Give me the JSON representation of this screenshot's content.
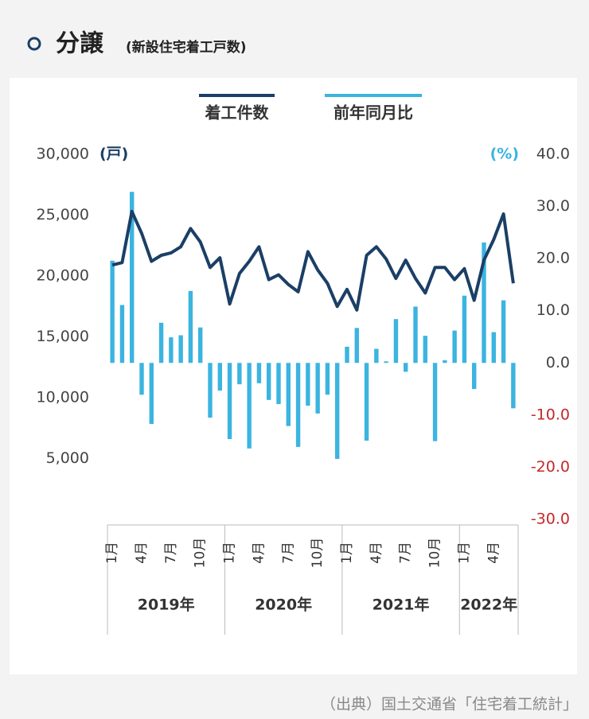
{
  "title": "分譲",
  "subtitle": "(新設住宅着工戸数)",
  "source": "（出典）国土交通省「住宅着工統計」",
  "chart_data": {
    "type": "bar-line",
    "categories": [
      "1月",
      null,
      null,
      "4月",
      null,
      null,
      "7月",
      null,
      null,
      "10月",
      null,
      null,
      "1月",
      null,
      null,
      "4月",
      null,
      null,
      "7月",
      null,
      null,
      "10月",
      null,
      null,
      "1月",
      null,
      null,
      "4月",
      null,
      null,
      "7月",
      null,
      null,
      "10月",
      null,
      null,
      "1月",
      null,
      null,
      "4月",
      null,
      null
    ],
    "groups": [
      "2019年",
      "2020年",
      "2021年",
      "2022年"
    ],
    "y_unit": "(戸)",
    "y2_unit": "(%)",
    "series": [
      {
        "name": "着工件数",
        "type": "line",
        "color": "#1b3f66",
        "axis": "y",
        "values": [
          20900,
          21100,
          25300,
          23500,
          21200,
          21700,
          21900,
          22400,
          23900,
          22800,
          20700,
          21500,
          17700,
          20200,
          21200,
          22400,
          19700,
          20100,
          19300,
          18700,
          22000,
          20500,
          19400,
          17500,
          18900,
          17200,
          21700,
          22400,
          21400,
          19800,
          21300,
          19800,
          18600,
          20700,
          20700,
          19700,
          20600,
          18000,
          21300,
          23000,
          25100,
          19400
        ]
      },
      {
        "name": "前年同月比",
        "type": "bar",
        "color": "#3bb4e0",
        "axis": "y2",
        "values": [
          19.6,
          11.1,
          32.8,
          -6.1,
          -11.7,
          7.7,
          4.9,
          5.3,
          13.8,
          6.8,
          -10.5,
          -5.3,
          -14.6,
          -4.1,
          -16.4,
          -3.9,
          -7.1,
          -7.9,
          -12.1,
          -16.1,
          -8.2,
          -9.7,
          -6.1,
          -18.4,
          3.1,
          6.7,
          -14.9,
          2.7,
          0.3,
          8.4,
          -1.7,
          10.8,
          5.2,
          -15.0,
          0.5,
          6.2,
          12.9,
          -5.0,
          23.1,
          5.9,
          12.0,
          -8.7
        ]
      }
    ],
    "ylim": [
      0,
      30000
    ],
    "yticks": [
      {
        "value": 30000,
        "label": "30,000"
      },
      {
        "value": 25000,
        "label": "25,000"
      },
      {
        "value": 20000,
        "label": "20,000"
      },
      {
        "value": 15000,
        "label": "15,000"
      },
      {
        "value": 10000,
        "label": "10,000"
      },
      {
        "value": 5000,
        "label": "5,000"
      }
    ],
    "y2lim": [
      -30,
      40
    ],
    "y2ticks": [
      {
        "value": 40,
        "label": "40.0"
      },
      {
        "value": 30,
        "label": "30.0"
      },
      {
        "value": 20,
        "label": "20.0"
      },
      {
        "value": 10,
        "label": "10.0"
      },
      {
        "value": 0,
        "label": "0.0"
      },
      {
        "value": -10,
        "label": "-10.0"
      },
      {
        "value": -20,
        "label": "-20.0"
      },
      {
        "value": -30,
        "label": "-30.0"
      }
    ],
    "y2_negative_tick_color": "#c62828",
    "legend": "top"
  }
}
